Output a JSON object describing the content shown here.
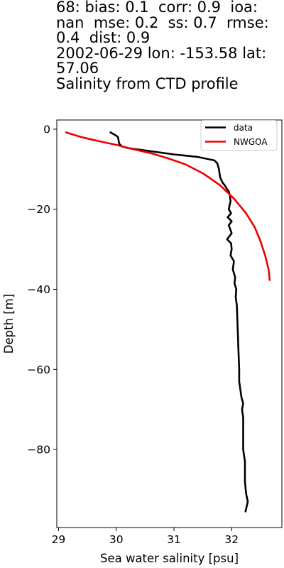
{
  "header": {
    "title_lines": [
      "68: bias: 0.1  corr: 0.9  ioa:",
      "nan  mse: 0.2  ss: 0.7  rmse:",
      "0.4  dist: 0.9",
      "2002-06-29 lon: -153.58 lat:",
      "57.06",
      "Salinity from CTD profile"
    ]
  },
  "chart_data": {
    "type": "line",
    "xlabel": "Sea water salinity [psu]",
    "ylabel": "Depth [m]",
    "xlim": [
      28.97,
      32.87
    ],
    "ylim": [
      -99.5,
      2.3
    ],
    "xticks": [
      29,
      30,
      31,
      32
    ],
    "yticks": [
      0,
      -20,
      -40,
      -60,
      -80
    ],
    "ytick_labels": [
      "0",
      "−20",
      "−40",
      "−60",
      "−80"
    ],
    "grid": false,
    "legend_position": "top-right",
    "series": [
      {
        "name": "data",
        "color": "#000000",
        "x": [
          29.9,
          30.0,
          30.03,
          30.05,
          30.1,
          30.2,
          30.6,
          31.0,
          31.4,
          31.7,
          31.75,
          31.78,
          31.8,
          31.84,
          31.88,
          31.92,
          31.95,
          31.97,
          31.98,
          31.95,
          31.99,
          31.93,
          32.0,
          31.95,
          32.0,
          31.92,
          31.99,
          32.0,
          31.98,
          32.04,
          32.02,
          32.06,
          32.05,
          32.08,
          32.07,
          32.09,
          32.1,
          32.11,
          32.12,
          32.13,
          32.13,
          32.15,
          32.17,
          32.2,
          32.18,
          32.2,
          32.2,
          32.2,
          32.23,
          32.23,
          32.23,
          32.25,
          32.28,
          32.24
        ],
        "y": [
          -0.8,
          -1.6,
          -2.0,
          -3.6,
          -4.3,
          -4.7,
          -5.5,
          -6.3,
          -6.9,
          -7.8,
          -8.5,
          -10.0,
          -12.0,
          -13.3,
          -14.0,
          -15.0,
          -15.5,
          -16.5,
          -18.0,
          -20.0,
          -21.0,
          -22.0,
          -23.0,
          -24.0,
          -26.0,
          -27.5,
          -28.5,
          -30.0,
          -31.5,
          -33.0,
          -35.0,
          -37.0,
          -38.5,
          -40.0,
          -42.0,
          -44.0,
          -48.0,
          -52.0,
          -56.0,
          -60.0,
          -63.0,
          -65.0,
          -67.0,
          -68.5,
          -70.0,
          -72.0,
          -75.0,
          -80.0,
          -83.0,
          -86.0,
          -88.0,
          -91.0,
          -93.0,
          -95.5
        ]
      },
      {
        "name": "NWGOA",
        "color": "#ee0000",
        "x": [
          29.13,
          29.4,
          29.7,
          30.0,
          30.3,
          30.6,
          30.9,
          31.2,
          31.5,
          31.8,
          32.05,
          32.25,
          32.4,
          32.5,
          32.58,
          32.64,
          32.66
        ],
        "y": [
          -0.8,
          -2.0,
          -3.0,
          -3.9,
          -5.0,
          -6.0,
          -7.3,
          -8.8,
          -11.0,
          -14.0,
          -17.5,
          -21.0,
          -24.5,
          -28.0,
          -31.5,
          -35.0,
          -37.7
        ]
      }
    ]
  }
}
